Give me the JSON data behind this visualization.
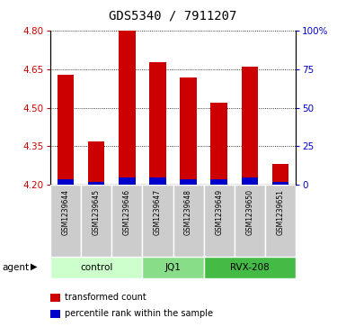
{
  "title": "GDS5340 / 7911207",
  "samples": [
    "GSM1239644",
    "GSM1239645",
    "GSM1239646",
    "GSM1239647",
    "GSM1239648",
    "GSM1239649",
    "GSM1239650",
    "GSM1239651"
  ],
  "transformed_counts": [
    4.63,
    4.37,
    4.8,
    4.68,
    4.62,
    4.52,
    4.66,
    4.28
  ],
  "percentile_values": [
    4.22,
    4.21,
    4.23,
    4.23,
    4.22,
    4.22,
    4.23,
    4.21
  ],
  "bar_bottom": 4.2,
  "ylim_left": [
    4.2,
    4.8
  ],
  "ylim_right": [
    0,
    100
  ],
  "yticks_left": [
    4.2,
    4.35,
    4.5,
    4.65,
    4.8
  ],
  "yticks_right": [
    0,
    25,
    50,
    75,
    100
  ],
  "ytick_labels_right": [
    "0",
    "25",
    "50",
    "75",
    "100%"
  ],
  "red_color": "#cc0000",
  "blue_color": "#0000cc",
  "bar_width": 0.55,
  "blue_bar_width": 0.55,
  "groups": [
    {
      "label": "control",
      "samples": [
        0,
        1,
        2
      ],
      "color": "#ccffcc"
    },
    {
      "label": "JQ1",
      "samples": [
        3,
        4
      ],
      "color": "#88dd88"
    },
    {
      "label": "RVX-208",
      "samples": [
        5,
        6,
        7
      ],
      "color": "#44bb44"
    }
  ],
  "agent_label": "agent",
  "legend_items": [
    {
      "color": "#cc0000",
      "label": "transformed count"
    },
    {
      "color": "#0000cc",
      "label": "percentile rank within the sample"
    }
  ]
}
